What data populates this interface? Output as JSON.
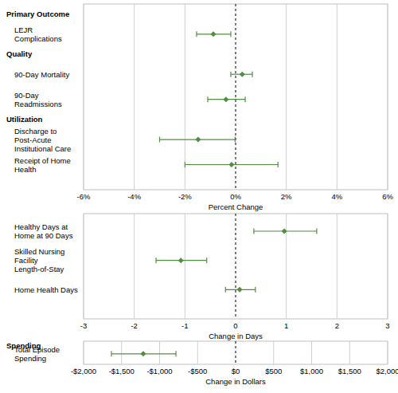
{
  "chart_data": [
    {
      "type": "forest",
      "categories": [
        "LEJR Complications",
        "90-Day Mortality",
        "90-Day Readmissions",
        "Discharge to Post-Acute Institutional Care",
        "Receipt of Home Health"
      ],
      "groups": [
        "Primary Outcome",
        "Quality",
        null,
        "Utilization",
        null
      ],
      "values": [
        -0.88,
        0.26,
        -0.38,
        -1.48,
        -0.16
      ],
      "ci_low": [
        -1.54,
        -0.19,
        -1.1,
        -3.0,
        -2.0
      ],
      "ci_high": [
        -0.19,
        0.66,
        0.38,
        -0.02,
        1.67
      ],
      "color": "#4f8f3f",
      "xlabel": "Percent Change",
      "xlim": [
        -6,
        6
      ],
      "xticks": [
        {
          "value": -6,
          "label": "-6%"
        },
        {
          "value": -4,
          "label": "-4%"
        },
        {
          "value": -2,
          "label": "-2%"
        },
        {
          "value": 0,
          "label": "0%"
        },
        {
          "value": 2,
          "label": "2%"
        },
        {
          "value": 4,
          "label": "4%"
        },
        {
          "value": 6,
          "label": "6%"
        }
      ],
      "grid": true
    },
    {
      "type": "forest",
      "categories": [
        "Healthy Days at Home at 90 Days",
        "Skilled Nursing Facility Length-of-Stay",
        "Home Health Days"
      ],
      "groups": [
        null,
        null,
        null
      ],
      "values": [
        0.96,
        -1.08,
        0.08
      ],
      "ci_low": [
        0.36,
        -1.57,
        -0.2
      ],
      "ci_high": [
        1.6,
        -0.57,
        0.39
      ],
      "color": "#4f8f3f",
      "xlabel": "Change in Days",
      "xlim": [
        -3,
        3
      ],
      "xticks": [
        -3,
        -2,
        -1,
        0,
        1,
        2,
        3
      ],
      "grid": true
    },
    {
      "type": "forest",
      "categories": [
        "Total Episode Spending"
      ],
      "groups": [
        "Spending"
      ],
      "values": [
        -1215
      ],
      "ci_low": [
        -1634
      ],
      "ci_high": [
        -785
      ],
      "color": "#4f8f3f",
      "xlabel": "Change in Dollars",
      "xlim": [
        -2000,
        2000
      ],
      "xticks": [
        {
          "value": -2000,
          "label": "-$2,000"
        },
        {
          "value": -1500,
          "label": "-$1,500"
        },
        {
          "value": -1000,
          "label": "-$1,000"
        },
        {
          "value": -500,
          "label": "-$500"
        },
        {
          "value": 0,
          "label": "$0"
        },
        {
          "value": 500,
          "label": "$500"
        },
        {
          "value": 1000,
          "label": "$1,000"
        },
        {
          "value": 1500,
          "label": "$1,500"
        },
        {
          "value": 2000,
          "label": "$2,000"
        }
      ],
      "grid": true
    }
  ]
}
